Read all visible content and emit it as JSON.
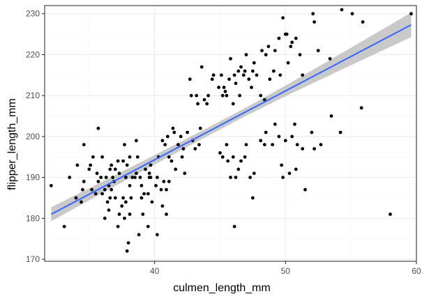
{
  "chart_data": {
    "type": "scatter",
    "title": "",
    "xlabel": "culmen_length_mm",
    "ylabel": "flipper_length_mm",
    "xlim": [
      31.6,
      60.0
    ],
    "ylim": [
      169.5,
      232.0
    ],
    "x_ticks": [
      40,
      50,
      60
    ],
    "y_ticks": [
      170,
      180,
      190,
      200,
      210,
      220,
      230
    ],
    "x_tick_labels": [
      "40",
      "50",
      "60"
    ],
    "y_tick_labels": [
      "170",
      "180",
      "190",
      "200",
      "210",
      "220",
      "230"
    ],
    "grid": true,
    "legend": "none",
    "colors": {
      "point": "#000000",
      "line": "#3366ff",
      "ribbon": "#bfbfbf",
      "grid_major": "#ebebeb",
      "grid_minor": "#f4f4f4",
      "border": "#333333"
    },
    "fit": {
      "method": "lm",
      "x_range": [
        32.1,
        59.6
      ],
      "y_start": 181.0,
      "y_end": 227.3,
      "ribbon_lower": [
        179.3,
        224.2
      ],
      "ribbon_upper": [
        182.7,
        230.2
      ]
    },
    "points": [
      [
        32.1,
        188
      ],
      [
        33.1,
        178
      ],
      [
        33.5,
        190
      ],
      [
        34.0,
        185
      ],
      [
        34.1,
        193
      ],
      [
        34.4,
        184
      ],
      [
        34.5,
        187
      ],
      [
        34.6,
        198
      ],
      [
        34.6,
        189
      ],
      [
        35.0,
        192
      ],
      [
        35.1,
        193
      ],
      [
        35.2,
        187
      ],
      [
        35.3,
        195
      ],
      [
        35.5,
        186
      ],
      [
        35.6,
        191
      ],
      [
        35.7,
        189
      ],
      [
        35.7,
        202
      ],
      [
        35.9,
        190
      ],
      [
        36.0,
        195
      ],
      [
        36.0,
        186
      ],
      [
        36.2,
        187
      ],
      [
        36.2,
        180
      ],
      [
        36.3,
        190
      ],
      [
        36.4,
        184
      ],
      [
        36.5,
        182
      ],
      [
        36.5,
        188
      ],
      [
        36.6,
        185
      ],
      [
        36.6,
        192
      ],
      [
        36.7,
        193
      ],
      [
        36.7,
        187
      ],
      [
        36.8,
        190
      ],
      [
        36.9,
        189
      ],
      [
        37.0,
        185
      ],
      [
        37.0,
        192
      ],
      [
        37.2,
        178
      ],
      [
        37.2,
        194
      ],
      [
        37.3,
        191
      ],
      [
        37.3,
        181
      ],
      [
        37.5,
        183
      ],
      [
        37.6,
        185
      ],
      [
        37.6,
        194
      ],
      [
        37.7,
        198
      ],
      [
        37.7,
        180
      ],
      [
        37.8,
        190
      ],
      [
        37.8,
        184
      ],
      [
        37.9,
        193
      ],
      [
        37.9,
        172
      ],
      [
        38.0,
        174
      ],
      [
        38.1,
        181
      ],
      [
        38.1,
        188
      ],
      [
        38.1,
        195
      ],
      [
        38.2,
        185
      ],
      [
        38.3,
        190
      ],
      [
        38.5,
        190
      ],
      [
        38.6,
        199
      ],
      [
        38.6,
        191
      ],
      [
        38.7,
        195
      ],
      [
        38.8,
        176
      ],
      [
        38.9,
        190
      ],
      [
        39.0,
        185
      ],
      [
        39.0,
        188
      ],
      [
        39.1,
        181
      ],
      [
        39.2,
        186
      ],
      [
        39.3,
        192
      ],
      [
        39.5,
        178
      ],
      [
        39.5,
        186
      ],
      [
        39.6,
        191
      ],
      [
        39.6,
        190
      ],
      [
        39.7,
        190
      ],
      [
        39.7,
        193
      ],
      [
        39.8,
        184
      ],
      [
        40.1,
        188
      ],
      [
        40.2,
        190
      ],
      [
        40.2,
        176
      ],
      [
        40.3,
        195
      ],
      [
        40.5,
        187
      ],
      [
        40.6,
        199
      ],
      [
        40.6,
        183
      ],
      [
        40.7,
        189
      ],
      [
        40.8,
        198
      ],
      [
        40.9,
        187
      ],
      [
        40.9,
        181
      ],
      [
        41.0,
        200
      ],
      [
        41.1,
        195
      ],
      [
        41.1,
        189
      ],
      [
        41.3,
        194
      ],
      [
        41.4,
        202
      ],
      [
        41.5,
        201
      ],
      [
        41.6,
        192
      ],
      [
        41.8,
        198
      ],
      [
        42.0,
        200
      ],
      [
        42.1,
        195
      ],
      [
        42.2,
        197
      ],
      [
        42.3,
        191
      ],
      [
        42.5,
        201
      ],
      [
        42.7,
        214
      ],
      [
        42.8,
        210
      ],
      [
        42.9,
        199
      ],
      [
        43.1,
        197
      ],
      [
        43.2,
        210
      ],
      [
        43.3,
        208
      ],
      [
        43.4,
        198
      ],
      [
        43.5,
        202
      ],
      [
        43.6,
        217
      ],
      [
        43.8,
        209
      ],
      [
        44.0,
        208
      ],
      [
        44.1,
        210
      ],
      [
        44.4,
        214
      ],
      [
        44.5,
        215
      ],
      [
        44.9,
        212
      ],
      [
        45.1,
        215
      ],
      [
        45.2,
        210
      ],
      [
        45.3,
        212
      ],
      [
        45.4,
        211
      ],
      [
        45.5,
        210
      ],
      [
        45.7,
        214
      ],
      [
        45.8,
        219
      ],
      [
        46.0,
        208
      ],
      [
        46.1,
        215
      ],
      [
        46.2,
        213
      ],
      [
        46.4,
        216
      ],
      [
        46.5,
        210
      ],
      [
        46.6,
        217
      ],
      [
        46.8,
        215
      ],
      [
        46.9,
        216
      ],
      [
        47.0,
        220
      ],
      [
        47.2,
        214
      ],
      [
        47.4,
        212
      ],
      [
        47.5,
        216
      ],
      [
        47.6,
        218
      ],
      [
        47.8,
        215
      ],
      [
        48.1,
        210
      ],
      [
        48.2,
        221
      ],
      [
        48.4,
        209
      ],
      [
        48.5,
        220
      ],
      [
        48.7,
        222
      ],
      [
        48.8,
        214
      ],
      [
        49.1,
        216
      ],
      [
        49.2,
        221
      ],
      [
        49.5,
        224
      ],
      [
        49.6,
        215
      ],
      [
        49.8,
        229
      ],
      [
        50.0,
        225
      ],
      [
        50.1,
        225
      ],
      [
        50.2,
        218
      ],
      [
        50.4,
        222
      ],
      [
        50.5,
        223
      ],
      [
        50.8,
        224
      ],
      [
        51.1,
        220
      ],
      [
        51.3,
        215
      ],
      [
        52.1,
        230
      ],
      [
        52.2,
        228
      ],
      [
        52.5,
        221
      ],
      [
        53.4,
        219
      ],
      [
        54.3,
        231
      ],
      [
        55.1,
        230
      ],
      [
        55.9,
        228
      ],
      [
        59.6,
        230
      ],
      [
        45.0,
        196
      ],
      [
        45.2,
        195
      ],
      [
        45.5,
        198
      ],
      [
        45.6,
        194
      ],
      [
        45.8,
        190
      ],
      [
        46.0,
        195
      ],
      [
        46.2,
        190
      ],
      [
        46.4,
        192
      ],
      [
        46.6,
        194
      ],
      [
        46.9,
        195
      ],
      [
        47.0,
        198
      ],
      [
        47.3,
        190
      ],
      [
        47.6,
        191
      ],
      [
        48.1,
        199
      ],
      [
        48.4,
        198
      ],
      [
        48.5,
        201
      ],
      [
        49.0,
        198
      ],
      [
        49.2,
        203
      ],
      [
        49.5,
        200
      ],
      [
        49.7,
        193
      ],
      [
        50.0,
        199
      ],
      [
        50.3,
        191
      ],
      [
        50.5,
        200
      ],
      [
        50.7,
        203
      ],
      [
        50.9,
        198
      ],
      [
        51.3,
        197
      ],
      [
        51.5,
        187
      ],
      [
        52.0,
        201
      ],
      [
        52.2,
        197
      ],
      [
        52.7,
        198
      ],
      [
        53.5,
        205
      ],
      [
        54.2,
        201
      ],
      [
        55.8,
        207
      ],
      [
        58.0,
        181
      ],
      [
        46.1,
        178
      ],
      [
        47.5,
        185
      ],
      [
        49.8,
        190
      ],
      [
        50.8,
        192
      ]
    ]
  }
}
